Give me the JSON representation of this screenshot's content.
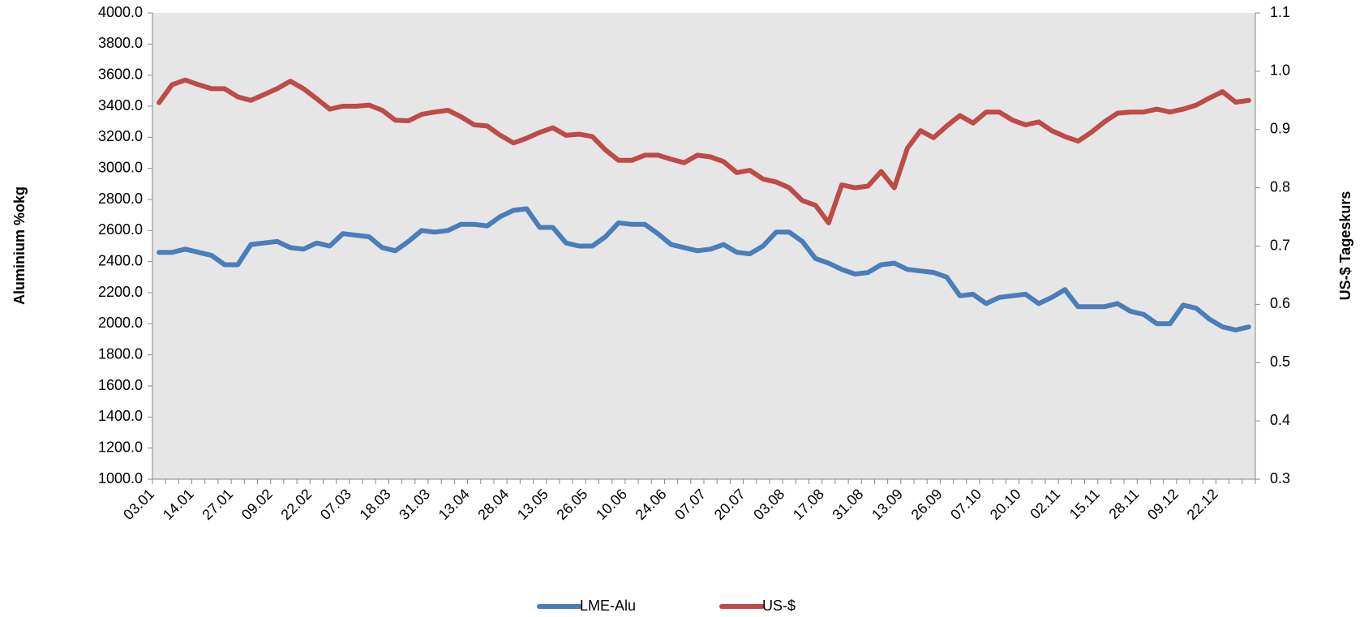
{
  "chart_data": {
    "type": "line",
    "y_label": "Aluminium %okg",
    "y2_label": "US-$ Tageskurs",
    "categories": [
      "03.01",
      null,
      null,
      "14.01",
      null,
      null,
      "27.01",
      null,
      null,
      "09.02",
      null,
      null,
      "22.02",
      null,
      null,
      "07.03",
      null,
      null,
      "18.03",
      null,
      null,
      "31.03",
      null,
      null,
      "13.04",
      null,
      null,
      "28.04",
      null,
      null,
      "13.05",
      null,
      null,
      "26.05",
      null,
      null,
      "10.06",
      null,
      null,
      "24.06",
      null,
      null,
      "07.07",
      null,
      null,
      "20.07",
      null,
      null,
      "03.08",
      null,
      null,
      "17.08",
      null,
      null,
      "31.08",
      null,
      null,
      "13.09",
      null,
      null,
      "26.09",
      null,
      null,
      "07.10",
      null,
      null,
      "20.10",
      null,
      null,
      "02.11",
      null,
      null,
      "15.11",
      null,
      null,
      "28.11",
      null,
      null,
      "09.12",
      null,
      null,
      "22.12",
      null,
      null
    ],
    "series": [
      {
        "name": "LME-Alu",
        "color": "#4a7ebb",
        "axis": "y",
        "values": [
          2460,
          2460,
          2480,
          2460,
          2440,
          2380,
          2380,
          2510,
          2520,
          2530,
          2490,
          2480,
          2520,
          2500,
          2580,
          2570,
          2560,
          2490,
          2470,
          2530,
          2600,
          2590,
          2600,
          2640,
          2640,
          2630,
          2690,
          2730,
          2740,
          2620,
          2620,
          2520,
          2500,
          2500,
          2560,
          2650,
          2640,
          2640,
          2580,
          2510,
          2490,
          2470,
          2480,
          2510,
          2460,
          2450,
          2500,
          2590,
          2590,
          2530,
          2420,
          2390,
          2350,
          2320,
          2330,
          2380,
          2390,
          2350,
          2340,
          2330,
          2300,
          2180,
          2190,
          2130,
          2170,
          2180,
          2190,
          2130,
          2170,
          2220,
          2110,
          2110,
          2110,
          2130,
          2080,
          2060,
          2000,
          2000,
          2120,
          2100,
          2030,
          1980,
          1960,
          1980
        ]
      },
      {
        "name": "US-$",
        "color": "#be4b48",
        "axis": "y2",
        "values": [
          0.946,
          0.977,
          0.985,
          0.977,
          0.97,
          0.97,
          0.956,
          0.95,
          0.96,
          0.97,
          0.983,
          0.97,
          0.953,
          0.935,
          0.94,
          0.94,
          0.942,
          0.933,
          0.916,
          0.915,
          0.926,
          0.93,
          0.933,
          0.922,
          0.908,
          0.906,
          0.89,
          0.877,
          0.885,
          0.895,
          0.903,
          0.89,
          0.892,
          0.888,
          0.865,
          0.847,
          0.847,
          0.856,
          0.856,
          0.849,
          0.843,
          0.856,
          0.853,
          0.845,
          0.826,
          0.83,
          0.815,
          0.81,
          0.8,
          0.778,
          0.77,
          0.74,
          0.805,
          0.8,
          0.803,
          0.828,
          0.8,
          0.868,
          0.898,
          0.886,
          0.906,
          0.924,
          0.911,
          0.93,
          0.93,
          0.916,
          0.908,
          0.913,
          0.898,
          0.888,
          0.88,
          0.895,
          0.913,
          0.928,
          0.93,
          0.93,
          0.935,
          0.93,
          0.935,
          0.942,
          0.954,
          0.965,
          0.947,
          0.95
        ]
      }
    ],
    "ylim": [
      1000,
      4000
    ],
    "yticks": [
      {
        "value": 1000,
        "label": "1000.0"
      },
      {
        "value": 1200,
        "label": "1200.0"
      },
      {
        "value": 1400,
        "label": "1400.0"
      },
      {
        "value": 1600,
        "label": "1600.0"
      },
      {
        "value": 1800,
        "label": "1800.0"
      },
      {
        "value": 2000,
        "label": "2000.0"
      },
      {
        "value": 2200,
        "label": "2200.0"
      },
      {
        "value": 2400,
        "label": "2400.0"
      },
      {
        "value": 2600,
        "label": "2600.0"
      },
      {
        "value": 2800,
        "label": "2800.0"
      },
      {
        "value": 3000,
        "label": "3000.0"
      },
      {
        "value": 3200,
        "label": "3200.0"
      },
      {
        "value": 3400,
        "label": "3400.0"
      },
      {
        "value": 3600,
        "label": "3600.0"
      },
      {
        "value": 3800,
        "label": "3800.0"
      },
      {
        "value": 4000,
        "label": "4000.0"
      }
    ],
    "y2lim": [
      0.3,
      1.1
    ],
    "y2ticks": [
      0.3,
      0.4,
      0.5,
      0.6,
      0.7,
      0.8,
      0.9,
      {
        "value": 1,
        "label": "1.0"
      },
      1.1
    ],
    "legend": "bottom"
  }
}
